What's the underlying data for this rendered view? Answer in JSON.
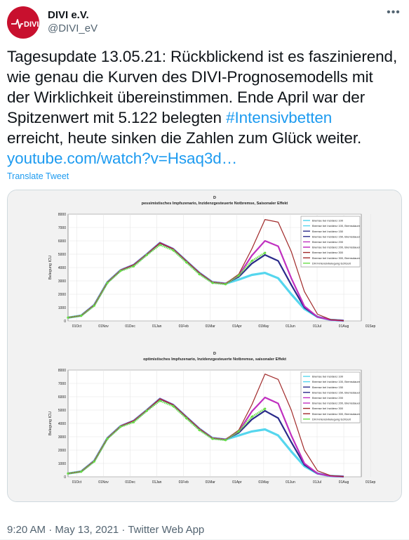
{
  "account": {
    "display_name": "DIVI e.V.",
    "handle": "@DIVI_eV",
    "avatar_text": "DIVI",
    "avatar_color": "#c8102e"
  },
  "tweet": {
    "line1": "Tagesupdate 13.05.21: Rückblickend ist es faszinierend,",
    "line2": "wie genau die Kurven des DIVI-Prognosemodells mit",
    "line3": "der Wirklichkeit übereinstimmen. Ende April war der",
    "line4_pre": "Spitzenwert mit 5.122 belegten ",
    "hashtag": "#Intensivbetten",
    "line5": "erreicht, heute sinken die Zahlen zum Glück weiter.",
    "link": "youtube.com/watch?v=Hsaq3d…",
    "translate_label": "Translate Tweet"
  },
  "footer": {
    "timestamp": "9:20 AM · May 13, 2021 · Twitter Web App"
  },
  "chart_data": [
    {
      "type": "line",
      "panel_label": "D",
      "title": "pessimistisches Impfszenario, Inzidenzgesteuerte Notbremse, Saisonaler Effekt",
      "ylabel": "Belegung ICU",
      "xlabel": "",
      "ylim": [
        0,
        8000
      ],
      "yticks": [
        "0",
        "1000",
        "2000",
        "3000",
        "4000",
        "5000",
        "6000",
        "7000",
        "8000"
      ],
      "xticks": [
        "01Oct",
        "01Nov",
        "01Dec",
        "01Jan",
        "01Feb",
        "01Mar",
        "01Apr",
        "01May",
        "01Jun",
        "01Jul",
        "01Aug",
        "01Sep"
      ],
      "grid": true,
      "legend_position": "top-right",
      "legend": [
        {
          "label": "Bremse bei Inzidenz 100",
          "color": "#55d6ee"
        },
        {
          "label": "Bremse bei Inzidenz 100, Bremsdauer",
          "color": "#55d6ee"
        },
        {
          "label": "Bremse bei Inzidenz 150",
          "color": "#2a2a8a"
        },
        {
          "label": "Bremse bei Inzidenz 150, Bremsdauer",
          "color": "#2a2a8a"
        },
        {
          "label": "Bremse bei Inzidenz 200",
          "color": "#c030c0"
        },
        {
          "label": "Bremse bei Inzidenz 200, Bremsdauer",
          "color": "#c030c0"
        },
        {
          "label": "Bremse bei Inzidenz 300",
          "color": "#a02828"
        },
        {
          "label": "Bremse bei Inzidenz 300, Bremsdauer",
          "color": "#a02828"
        },
        {
          "label": "DIVI-Intensivbelegung Echtzeit",
          "color": "#66dd44"
        }
      ],
      "series": [
        {
          "name": "Bremse bei Inzidenz 100",
          "color": "#55d6ee",
          "x": [
            0,
            15,
            30,
            45,
            60,
            75,
            90,
            105,
            120,
            135,
            150,
            165,
            180,
            195,
            210,
            225,
            240,
            255,
            270,
            285,
            300,
            315
          ],
          "values": [
            250,
            400,
            1200,
            2900,
            3800,
            4200,
            5000,
            5850,
            5400,
            4500,
            3600,
            2900,
            2800,
            3100,
            3450,
            3600,
            3200,
            2000,
            900,
            300,
            80,
            20
          ]
        },
        {
          "name": "Bremse bei Inzidenz 150",
          "color": "#2a2a8a",
          "x": [
            0,
            15,
            30,
            45,
            60,
            75,
            90,
            105,
            120,
            135,
            150,
            165,
            180,
            195,
            210,
            225,
            240,
            255,
            270,
            285,
            300,
            315
          ],
          "values": [
            250,
            400,
            1200,
            2900,
            3800,
            4200,
            5000,
            5850,
            5400,
            4500,
            3600,
            2900,
            2800,
            3300,
            4300,
            4950,
            4500,
            2700,
            1000,
            300,
            80,
            20
          ]
        },
        {
          "name": "Bremse bei Inzidenz 200",
          "color": "#c030c0",
          "x": [
            0,
            15,
            30,
            45,
            60,
            75,
            90,
            105,
            120,
            135,
            150,
            165,
            180,
            195,
            210,
            225,
            240,
            255,
            270,
            285,
            300,
            315
          ],
          "values": [
            250,
            400,
            1200,
            2900,
            3800,
            4200,
            5000,
            5850,
            5400,
            4500,
            3600,
            2900,
            2800,
            3400,
            4900,
            6000,
            5600,
            3200,
            1100,
            300,
            80,
            20
          ]
        },
        {
          "name": "Bremse bei Inzidenz 300",
          "color": "#a02828",
          "x": [
            0,
            15,
            30,
            45,
            60,
            75,
            90,
            105,
            120,
            135,
            150,
            165,
            180,
            195,
            210,
            225,
            240,
            255,
            270,
            285,
            300,
            315
          ],
          "values": [
            250,
            400,
            1200,
            2900,
            3800,
            4200,
            5000,
            5850,
            5400,
            4500,
            3600,
            2900,
            2800,
            3500,
            5400,
            7600,
            7400,
            5200,
            2200,
            500,
            100,
            20
          ]
        },
        {
          "name": "DIVI-Intensivbelegung Echtzeit",
          "color": "#66dd44",
          "x": [
            0,
            15,
            30,
            45,
            60,
            75,
            90,
            105,
            120,
            135,
            150,
            165,
            180,
            195,
            210,
            225
          ],
          "values": [
            250,
            380,
            1150,
            2850,
            3750,
            4100,
            4950,
            5700,
            5300,
            4400,
            3500,
            2850,
            2750,
            3400,
            4500,
            5100
          ]
        }
      ]
    },
    {
      "type": "line",
      "panel_label": "D",
      "title": "optimistisches Impfszenario, Inzidenzgesteuerte Notbremse, saisonaler Effekt",
      "ylabel": "Belegung ICU",
      "xlabel": "",
      "ylim": [
        0,
        8000
      ],
      "yticks": [
        "0",
        "1000",
        "2000",
        "3000",
        "4000",
        "5000",
        "6000",
        "7000",
        "8000"
      ],
      "xticks": [
        "01Oct",
        "01Nov",
        "01Dec",
        "01Jan",
        "01Feb",
        "01Mar",
        "01Apr",
        "01May",
        "01Jun",
        "01Jul",
        "01Aug",
        "01Sep"
      ],
      "grid": true,
      "legend_position": "top-right",
      "legend": [
        {
          "label": "Bremse bei Inzidenz 100",
          "color": "#55d6ee"
        },
        {
          "label": "Bremse bei Inzidenz 100, Bremsdauer",
          "color": "#55d6ee"
        },
        {
          "label": "Bremse bei Inzidenz 150",
          "color": "#2a2a8a"
        },
        {
          "label": "Bremse bei Inzidenz 150, Bremsdauer",
          "color": "#2a2a8a"
        },
        {
          "label": "Bremse bei Inzidenz 200",
          "color": "#c030c0"
        },
        {
          "label": "Bremse bei Inzidenz 200, Bremsdauer",
          "color": "#c030c0"
        },
        {
          "label": "Bremse bei Inzidenz 300",
          "color": "#a02828"
        },
        {
          "label": "Bremse bei Inzidenz 300, Bremsdauer",
          "color": "#a02828"
        },
        {
          "label": "DIVI-Intensivbelegung Echtzeit",
          "color": "#66dd44"
        }
      ],
      "series": [
        {
          "name": "Bremse bei Inzidenz 100",
          "color": "#55d6ee",
          "x": [
            0,
            15,
            30,
            45,
            60,
            75,
            90,
            105,
            120,
            135,
            150,
            165,
            180,
            195,
            210,
            225,
            240,
            255,
            270,
            285,
            300,
            315
          ],
          "values": [
            250,
            400,
            1200,
            2900,
            3800,
            4200,
            5000,
            5850,
            5400,
            4500,
            3600,
            2900,
            2800,
            3100,
            3400,
            3550,
            3100,
            1900,
            800,
            250,
            60,
            20
          ]
        },
        {
          "name": "Bremse bei Inzidenz 150",
          "color": "#2a2a8a",
          "x": [
            0,
            15,
            30,
            45,
            60,
            75,
            90,
            105,
            120,
            135,
            150,
            165,
            180,
            195,
            210,
            225,
            240,
            255,
            270,
            285,
            300,
            315
          ],
          "values": [
            250,
            400,
            1200,
            2900,
            3800,
            4200,
            5000,
            5850,
            5400,
            4500,
            3600,
            2900,
            2800,
            3300,
            4300,
            4950,
            4400,
            2600,
            900,
            250,
            60,
            20
          ]
        },
        {
          "name": "Bremse bei Inzidenz 200",
          "color": "#c030c0",
          "x": [
            0,
            15,
            30,
            45,
            60,
            75,
            90,
            105,
            120,
            135,
            150,
            165,
            180,
            195,
            210,
            225,
            240,
            255,
            270,
            285,
            300,
            315
          ],
          "values": [
            250,
            400,
            1200,
            2900,
            3800,
            4200,
            5000,
            5850,
            5400,
            4500,
            3600,
            2900,
            2800,
            3400,
            4900,
            5950,
            5500,
            3100,
            1000,
            250,
            60,
            20
          ]
        },
        {
          "name": "Bremse bei Inzidenz 300",
          "color": "#a02828",
          "x": [
            0,
            15,
            30,
            45,
            60,
            75,
            90,
            105,
            120,
            135,
            150,
            165,
            180,
            195,
            210,
            225,
            240,
            255,
            270,
            285,
            300,
            315
          ],
          "values": [
            250,
            400,
            1200,
            2900,
            3800,
            4200,
            5000,
            5850,
            5400,
            4500,
            3600,
            2900,
            2800,
            3500,
            5400,
            7700,
            7300,
            5000,
            2000,
            450,
            90,
            20
          ]
        },
        {
          "name": "DIVI-Intensivbelegung Echtzeit",
          "color": "#66dd44",
          "x": [
            0,
            15,
            30,
            45,
            60,
            75,
            90,
            105,
            120,
            135,
            150,
            165,
            180,
            195,
            210,
            225
          ],
          "values": [
            250,
            380,
            1150,
            2850,
            3750,
            4100,
            4950,
            5700,
            5300,
            4400,
            3500,
            2850,
            2750,
            3400,
            4500,
            5100
          ]
        }
      ]
    }
  ]
}
